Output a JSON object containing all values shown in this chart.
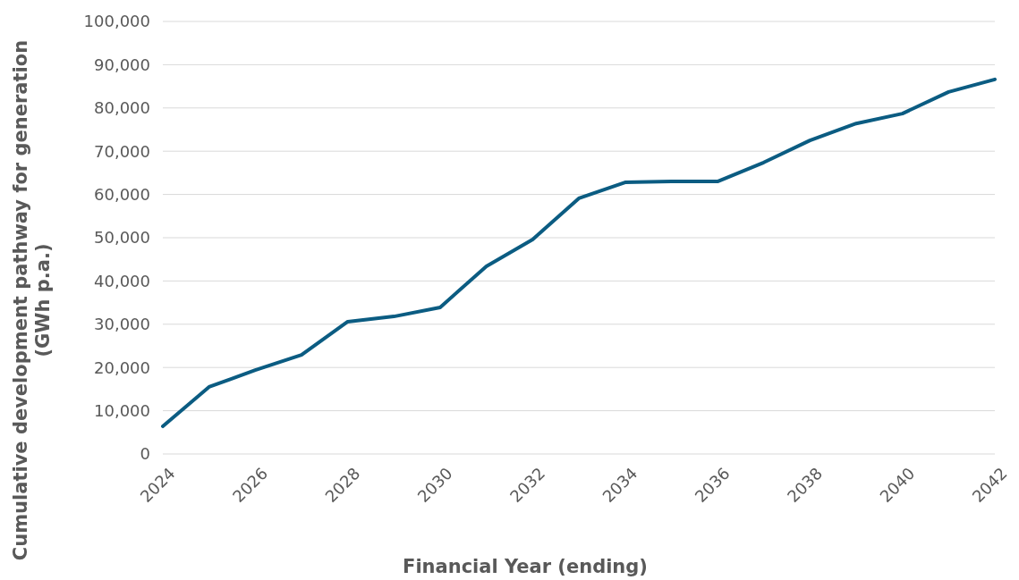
{
  "chart_data": {
    "type": "line",
    "xlabel": "Financial Year (ending)",
    "ylabel": "Cumulative development pathway for generation\n(GWh p.a.)",
    "x": [
      2024,
      2025,
      2026,
      2027,
      2028,
      2029,
      2030,
      2031,
      2032,
      2033,
      2034,
      2035,
      2036,
      2037,
      2038,
      2039,
      2040,
      2041,
      2042
    ],
    "series": [
      {
        "color": "#0b5c82",
        "values": [
          6400,
          15500,
          19400,
          22900,
          30600,
          31800,
          33900,
          43400,
          49600,
          59100,
          62800,
          63000,
          63000,
          67400,
          72500,
          76400,
          78700,
          83700,
          86600
        ]
      }
    ],
    "xlim": [
      2024,
      2042
    ],
    "xticks": [
      2024,
      2026,
      2028,
      2030,
      2032,
      2034,
      2036,
      2038,
      2040,
      2042
    ],
    "ylim": [
      0,
      100000
    ],
    "yticks": [
      {
        "value": 0,
        "label": "0"
      },
      {
        "value": 10000,
        "label": "10,000"
      },
      {
        "value": 20000,
        "label": "20,000"
      },
      {
        "value": 30000,
        "label": "30,000"
      },
      {
        "value": 40000,
        "label": "40,000"
      },
      {
        "value": 50000,
        "label": "50,000"
      },
      {
        "value": 60000,
        "label": "60,000"
      },
      {
        "value": 70000,
        "label": "70,000"
      },
      {
        "value": 80000,
        "label": "80,000"
      },
      {
        "value": 90000,
        "label": "90,000"
      },
      {
        "value": 100000,
        "label": "100,000"
      }
    ],
    "grid": "y",
    "marker": "none",
    "line_style": "solid"
  }
}
